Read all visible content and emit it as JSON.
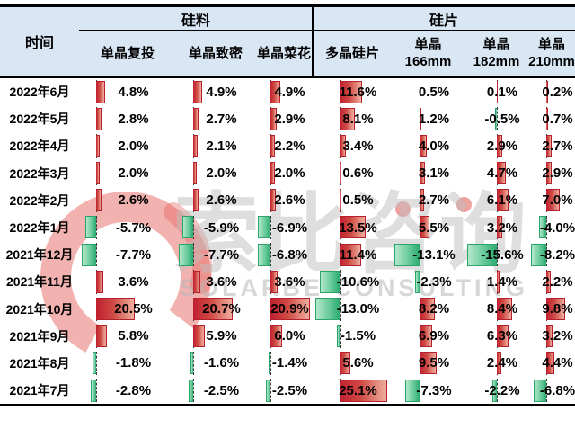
{
  "header": {
    "time_label": "时间",
    "groups": [
      {
        "label": "硅料",
        "span": 3
      },
      {
        "label": "硅片",
        "span": 4
      }
    ]
  },
  "watermark": {
    "cn": "索比咨询",
    "en": "SOLARBE CONSULTING"
  },
  "colors": {
    "header_bg": "#d9e7f4",
    "positive_bar": "#c01f2e",
    "negative_bar": "#2bab70",
    "border": "#000000",
    "watermark_red": "#e2544e"
  },
  "chart_data": {
    "type": "table",
    "title": "",
    "unit": "%",
    "row_header": "时间",
    "groups": [
      {
        "label": "硅料",
        "columns": [
          0,
          1,
          2
        ]
      },
      {
        "label": "硅片",
        "columns": [
          3,
          4,
          5,
          6
        ]
      }
    ],
    "columns": [
      {
        "lines": [
          "单晶复投"
        ]
      },
      {
        "lines": [
          "单晶致密"
        ]
      },
      {
        "lines": [
          "单晶菜花"
        ]
      },
      {
        "lines": [
          "多晶硅片"
        ]
      },
      {
        "lines": [
          "单晶",
          "166mm"
        ]
      },
      {
        "lines": [
          "单晶",
          "182mm"
        ]
      },
      {
        "lines": [
          "单晶",
          "210mm"
        ]
      }
    ],
    "rows": [
      {
        "label": "2022年6月",
        "values": [
          4.8,
          4.9,
          4.9,
          11.6,
          0.5,
          0.1,
          0.2
        ]
      },
      {
        "label": "2022年5月",
        "values": [
          2.8,
          2.7,
          2.9,
          8.1,
          1.2,
          -0.5,
          0.7
        ]
      },
      {
        "label": "2022年4月",
        "values": [
          2.0,
          2.1,
          2.2,
          3.4,
          4.0,
          2.9,
          2.7
        ]
      },
      {
        "label": "2022年3月",
        "values": [
          2.0,
          2.0,
          2.0,
          0.6,
          3.1,
          4.7,
          2.9
        ]
      },
      {
        "label": "2022年2月",
        "values": [
          2.6,
          2.6,
          2.6,
          0.5,
          2.7,
          6.1,
          7.0
        ]
      },
      {
        "label": "2022年1月",
        "values": [
          -5.7,
          -5.9,
          -6.9,
          13.5,
          5.5,
          3.2,
          -4.0
        ]
      },
      {
        "label": "2021年12月",
        "values": [
          -7.7,
          -7.7,
          -6.8,
          11.4,
          -13.1,
          -15.6,
          -8.2
        ]
      },
      {
        "label": "2021年11月",
        "values": [
          3.6,
          3.6,
          3.6,
          -10.6,
          -2.3,
          1.4,
          2.2
        ]
      },
      {
        "label": "2021年10月",
        "values": [
          20.5,
          20.7,
          20.9,
          -13.0,
          8.2,
          8.4,
          9.8
        ]
      },
      {
        "label": "2021年9月",
        "values": [
          5.8,
          5.9,
          6.0,
          -1.5,
          6.9,
          6.3,
          3.2
        ]
      },
      {
        "label": "2021年8月",
        "values": [
          -1.8,
          -1.6,
          -1.4,
          5.6,
          9.5,
          2.4,
          4.4
        ]
      },
      {
        "label": "2021年7月",
        "values": [
          -2.8,
          -2.5,
          -2.5,
          25.1,
          -7.3,
          -2.2,
          -6.8
        ]
      }
    ],
    "bar_style": "excel-data-bars, dashed zero axis per column, positive red right, negative green left"
  }
}
